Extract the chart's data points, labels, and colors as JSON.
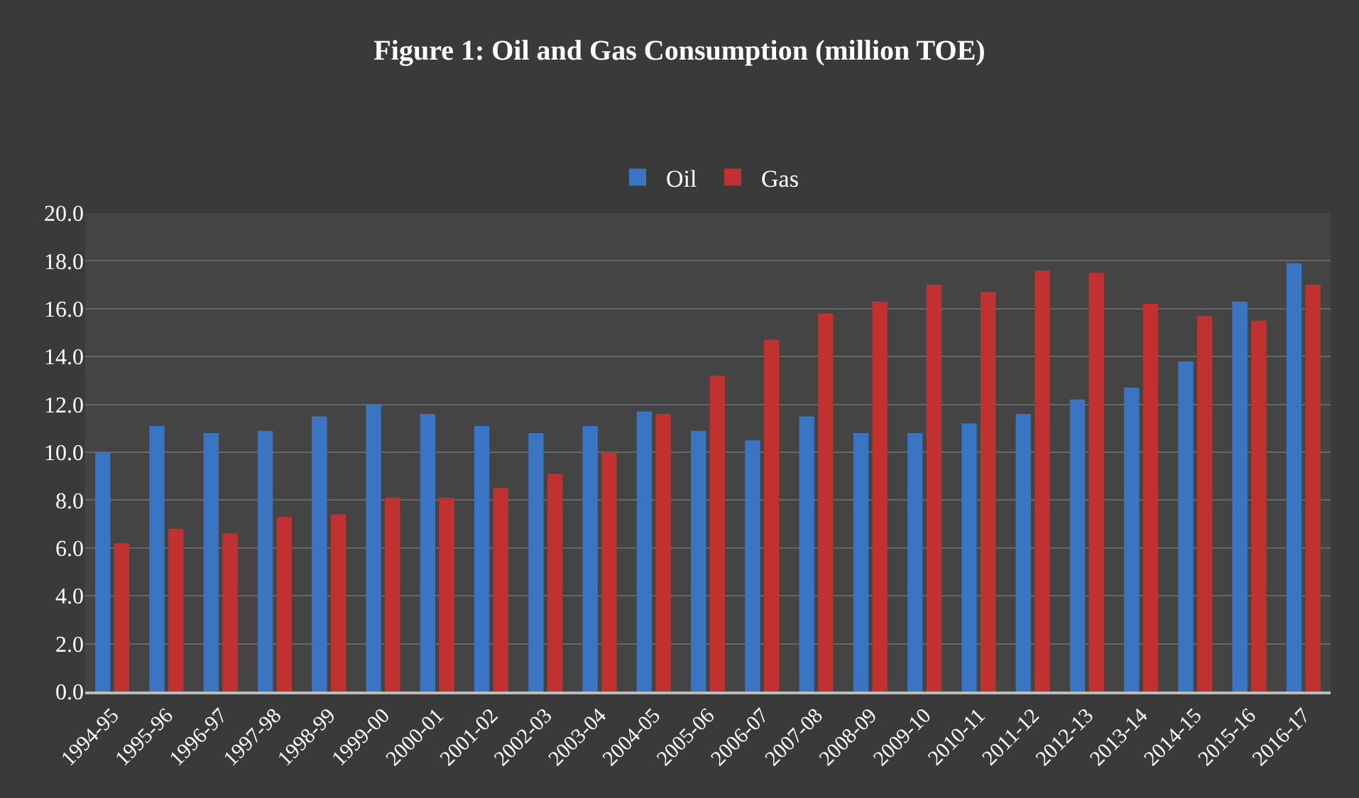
{
  "chart_data": {
    "type": "bar",
    "title": "Figure 1: Oil and Gas Consumption (million TOE)",
    "categories": [
      "1994-95",
      "1995-96",
      "1996-97",
      "1997-98",
      "1998-99",
      "1999-00",
      "2000-01",
      "2001-02",
      "2002-03",
      "2003-04",
      "2004-05",
      "2005-06",
      "2006-07",
      "2007-08",
      "2008-09",
      "2009-10",
      "2010-11",
      "2011-12",
      "2012-13",
      "2013-14",
      "2014-15",
      "2015-16",
      "2016-17"
    ],
    "series": [
      {
        "name": "Oil",
        "color": "#3a75c4",
        "values": [
          10.0,
          11.1,
          10.8,
          10.9,
          11.5,
          12.0,
          11.6,
          11.1,
          10.8,
          11.1,
          11.7,
          10.9,
          10.5,
          11.5,
          10.8,
          10.8,
          11.2,
          11.6,
          12.2,
          12.7,
          13.8,
          16.3,
          17.9
        ]
      },
      {
        "name": "Gas",
        "color": "#c0312f",
        "values": [
          6.2,
          6.8,
          6.6,
          7.3,
          7.4,
          8.1,
          8.1,
          8.5,
          9.1,
          10.0,
          11.6,
          13.2,
          14.7,
          15.8,
          16.3,
          17.0,
          16.7,
          17.6,
          17.5,
          16.2,
          15.7,
          15.5,
          17.0
        ]
      }
    ],
    "ylim": [
      0,
      20
    ],
    "yticks": [
      {
        "value": 0,
        "label": "0.0"
      },
      {
        "value": 2,
        "label": "2.0"
      },
      {
        "value": 4,
        "label": "4.0"
      },
      {
        "value": 6,
        "label": "6.0"
      },
      {
        "value": 8,
        "label": "8.0"
      },
      {
        "value": 10,
        "label": "10.0"
      },
      {
        "value": 12,
        "label": "12.0"
      },
      {
        "value": 14,
        "label": "14.0"
      },
      {
        "value": 16,
        "label": "16.0"
      },
      {
        "value": 18,
        "label": "18.0"
      },
      {
        "value": 20,
        "label": "20.0"
      }
    ],
    "grid": "y",
    "legend": "top"
  }
}
